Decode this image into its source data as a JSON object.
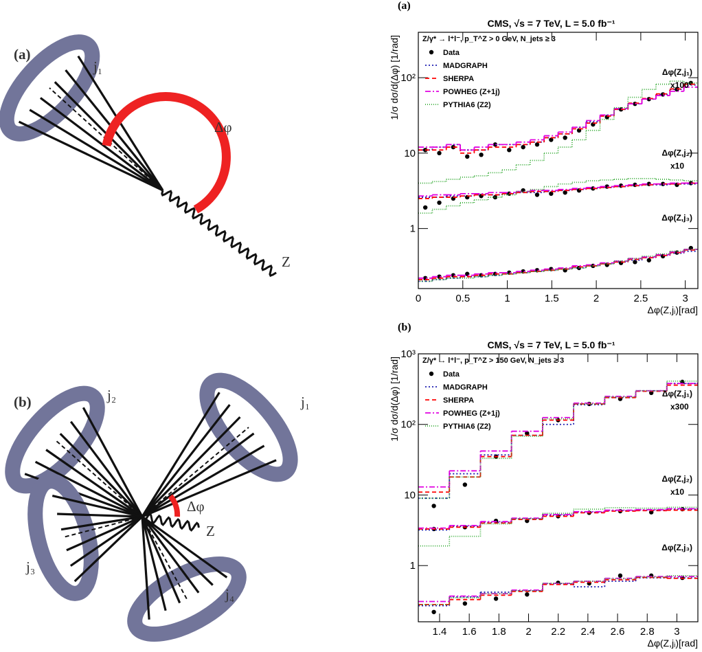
{
  "diagram_a": {
    "label": "(a)",
    "jet_labels": [
      "j₁"
    ],
    "angle_label": "Δφ",
    "boson_label": "Z"
  },
  "diagram_b": {
    "label": "(b)",
    "jet_labels": [
      "j₁",
      "j₂",
      "j₃",
      "j₄"
    ],
    "angle_label": "Δφ",
    "boson_label": "Z"
  },
  "chart_data": [
    {
      "type": "step",
      "panel_label": "(a)",
      "title": "CMS, √s = 7 TeV, L = 5.0 fb⁻¹",
      "subtitle": "Z/γ* → l⁺l⁻, p_T^Z > 0 GeV, N_jets ≥ 3",
      "x_label": "Δφ(Z,jᵢ)[rad]",
      "y_label": "1/σ dσ/d(Δφ) [1/rad]",
      "log_y": true,
      "legend": "upper left",
      "xlim": [
        0,
        3.1416
      ],
      "ylim": [
        0.16,
        400
      ],
      "xticks": [
        0,
        0.5,
        1,
        1.5,
        2,
        2.5,
        3
      ],
      "yticks": [
        1,
        10,
        {
          "value": 100,
          "label": "10²"
        }
      ],
      "bins": [
        0,
        0.1571,
        0.3142,
        0.4712,
        0.6283,
        0.7854,
        0.9425,
        1.0996,
        1.2566,
        1.4137,
        1.5708,
        1.7279,
        1.885,
        2.042,
        2.1991,
        2.3562,
        2.5133,
        2.6704,
        2.8274,
        2.9845,
        3.1416
      ],
      "groups": [
        {
          "label": "Δφ(Z,j₁)",
          "scale": "x100"
        },
        {
          "label": "Δφ(Z,j₂)",
          "scale": "x10"
        },
        {
          "label": "Δφ(Z,j₃)"
        }
      ],
      "series": [
        {
          "name": "Data",
          "color": "#000000",
          "style": "points",
          "values": [
            [
              11,
              10,
              12,
              9,
              9.5,
              13,
              11,
              12,
              13,
              15,
              16,
              20,
              24,
              30,
              38,
              45,
              52,
              60,
              70,
              85
            ],
            [
              1.9,
              2.2,
              2.5,
              2.6,
              2.7,
              2.6,
              2.9,
              3.2,
              2.8,
              2.9,
              3.0,
              3.2,
              3.4,
              3.6,
              3.7,
              3.8,
              3.9,
              3.9,
              3.8,
              4.0
            ],
            [
              0.22,
              0.23,
              0.24,
              0.25,
              0.24,
              0.25,
              0.26,
              0.27,
              0.28,
              0.29,
              0.28,
              0.3,
              0.32,
              0.33,
              0.35,
              0.36,
              0.38,
              0.43,
              0.48,
              0.55
            ]
          ]
        },
        {
          "name": "MADGRAPH",
          "color": "#1c1cb0",
          "style": "step",
          "dash": "2,3",
          "values": [
            [
              11,
              12,
              13,
              11,
              11,
              13,
              13,
              13,
              14,
              16,
              18,
              22,
              26,
              32,
              38,
              45,
              52,
              60,
              70,
              80
            ],
            [
              2.6,
              2.6,
              2.7,
              2.7,
              2.8,
              2.8,
              2.9,
              3.0,
              3.0,
              3.1,
              3.2,
              3.3,
              3.4,
              3.5,
              3.6,
              3.7,
              3.8,
              3.8,
              3.9,
              3.9
            ],
            [
              0.2,
              0.21,
              0.22,
              0.23,
              0.23,
              0.24,
              0.25,
              0.26,
              0.27,
              0.28,
              0.29,
              0.3,
              0.32,
              0.34,
              0.36,
              0.38,
              0.41,
              0.44,
              0.47,
              0.5
            ]
          ]
        },
        {
          "name": "SHERPA",
          "color": "#ff0000",
          "style": "step",
          "dash": "6,4",
          "values": [
            [
              11,
              11,
              12,
              10,
              11,
              12,
              12,
              13,
              14,
              16,
              18,
              21,
              25,
              31,
              38,
              46,
              53,
              61,
              71,
              82
            ],
            [
              2.5,
              2.6,
              2.6,
              2.7,
              2.8,
              2.8,
              2.9,
              3.0,
              3.1,
              3.1,
              3.2,
              3.3,
              3.4,
              3.5,
              3.6,
              3.7,
              3.8,
              3.9,
              3.9,
              4.0
            ],
            [
              0.21,
              0.22,
              0.23,
              0.23,
              0.24,
              0.25,
              0.25,
              0.26,
              0.27,
              0.28,
              0.29,
              0.31,
              0.32,
              0.34,
              0.36,
              0.39,
              0.41,
              0.44,
              0.48,
              0.52
            ]
          ]
        },
        {
          "name": "POWHEG (Z+1j)",
          "color": "#e000e0",
          "style": "step",
          "dash": "8,3,2,3",
          "values": [
            [
              12,
              12,
              13,
              11,
              12,
              13,
              13,
              14,
              15,
              17,
              19,
              22,
              27,
              32,
              39,
              45,
              52,
              58,
              66,
              75
            ],
            [
              2.7,
              2.8,
              2.8,
              2.9,
              2.9,
              3.0,
              3.0,
              3.1,
              3.2,
              3.2,
              3.3,
              3.4,
              3.5,
              3.6,
              3.7,
              3.8,
              3.9,
              3.9,
              4.0,
              4.0
            ],
            [
              0.22,
              0.23,
              0.24,
              0.24,
              0.25,
              0.26,
              0.26,
              0.27,
              0.28,
              0.29,
              0.3,
              0.32,
              0.33,
              0.35,
              0.37,
              0.4,
              0.42,
              0.45,
              0.49,
              0.53
            ]
          ]
        },
        {
          "name": "PYTHIA6 (Z2)",
          "color": "#33aa33",
          "style": "step",
          "dash": "1,2",
          "values": [
            [
              4,
              4.2,
              4.5,
              4.8,
              5,
              5.5,
              6,
              7,
              8,
              10,
              12,
              15,
              20,
              28,
              40,
              55,
              70,
              82,
              90,
              85
            ],
            [
              1.6,
              1.8,
              2.0,
              2.2,
              2.4,
              2.6,
              2.8,
              3.1,
              3.3,
              3.6,
              3.9,
              4.1,
              4.3,
              4.4,
              4.5,
              4.6,
              4.6,
              4.5,
              4.4,
              4.3
            ],
            [
              0.2,
              0.21,
              0.22,
              0.22,
              0.23,
              0.24,
              0.25,
              0.26,
              0.27,
              0.28,
              0.29,
              0.3,
              0.32,
              0.34,
              0.37,
              0.4,
              0.43,
              0.46,
              0.5,
              0.53
            ]
          ]
        }
      ]
    },
    {
      "type": "step",
      "panel_label": "(b)",
      "title": "CMS, √s = 7 TeV, L = 5.0 fb⁻¹",
      "subtitle": "Z/γ* → l⁺l⁻, p_T^Z > 150 GeV, N_jets ≥ 3",
      "x_label": "Δφ(Z,jᵢ)[rad]",
      "y_label": "1/σ dσ/d(Δφ) [1/rad]",
      "log_y": true,
      "legend": "upper left",
      "xlim": [
        1.2566,
        3.1416
      ],
      "ylim": [
        0.16,
        1000
      ],
      "xticks": [
        1.4,
        1.6,
        1.8,
        2,
        2.2,
        2.4,
        2.6,
        2.8,
        3
      ],
      "yticks": [
        1,
        10,
        {
          "value": 100,
          "label": "10²"
        },
        {
          "value": 1000,
          "label": "10³"
        }
      ],
      "bins": [
        1.2566,
        1.4661,
        1.6755,
        1.885,
        2.0944,
        2.3038,
        2.5133,
        2.7227,
        2.9322,
        3.1416
      ],
      "groups": [
        {
          "label": "Δφ(Z,j₁)",
          "scale": "x300"
        },
        {
          "label": "Δφ(Z,j₂)",
          "scale": "x10"
        },
        {
          "label": "Δφ(Z,j₃)"
        }
      ],
      "series": [
        {
          "name": "Data",
          "color": "#000000",
          "style": "points",
          "values": [
            [
              7,
              14,
              35,
              75,
              115,
              195,
              230,
              280,
              400
            ],
            [
              3.3,
              3.5,
              4.3,
              4.3,
              5.0,
              5.6,
              5.9,
              5.7,
              6.3
            ],
            [
              0.22,
              0.29,
              0.34,
              0.39,
              0.57,
              0.56,
              0.72,
              0.72,
              0.67
            ]
          ]
        },
        {
          "name": "MADGRAPH",
          "color": "#1c1cb0",
          "style": "step",
          "dash": "2,3",
          "values": [
            [
              9,
              20,
              37,
              70,
              100,
              190,
              240,
              300,
              380
            ],
            [
              3.2,
              3.6,
              4.1,
              4.6,
              5.2,
              5.7,
              6.0,
              6.1,
              6.3
            ],
            [
              0.27,
              0.36,
              0.42,
              0.44,
              0.55,
              0.5,
              0.6,
              0.67,
              0.67
            ]
          ]
        },
        {
          "name": "SHERPA",
          "color": "#ff0000",
          "style": "step",
          "dash": "6,4",
          "values": [
            [
              11,
              18,
              35,
              70,
              115,
              195,
              240,
              295,
              360
            ],
            [
              3.3,
              3.5,
              4.0,
              4.5,
              5.0,
              5.6,
              5.9,
              6.0,
              6.1
            ],
            [
              0.28,
              0.33,
              0.38,
              0.43,
              0.54,
              0.58,
              0.63,
              0.68,
              0.66
            ]
          ]
        },
        {
          "name": "POWHEG (Z+1j)",
          "color": "#e000e0",
          "style": "step",
          "dash": "8,3,2,3",
          "values": [
            [
              13,
              22,
              42,
              80,
              125,
              200,
              250,
              300,
              380
            ],
            [
              3.4,
              3.7,
              4.2,
              4.7,
              5.3,
              5.8,
              6.1,
              6.2,
              6.4
            ],
            [
              0.31,
              0.37,
              0.4,
              0.45,
              0.56,
              0.6,
              0.66,
              0.7,
              0.7
            ]
          ]
        },
        {
          "name": "PYTHIA6 (Z2)",
          "color": "#33aa33",
          "style": "step",
          "dash": "1,2",
          "values": [
            [
              9,
              18,
              33,
              68,
              120,
              195,
              245,
              300,
              410
            ],
            [
              1.9,
              2.6,
              3.9,
              4.6,
              5.5,
              6.3,
              6.6,
              6.5,
              6.7
            ],
            [
              0.28,
              0.35,
              0.4,
              0.44,
              0.56,
              0.6,
              0.65,
              0.69,
              0.72
            ]
          ]
        }
      ]
    }
  ]
}
